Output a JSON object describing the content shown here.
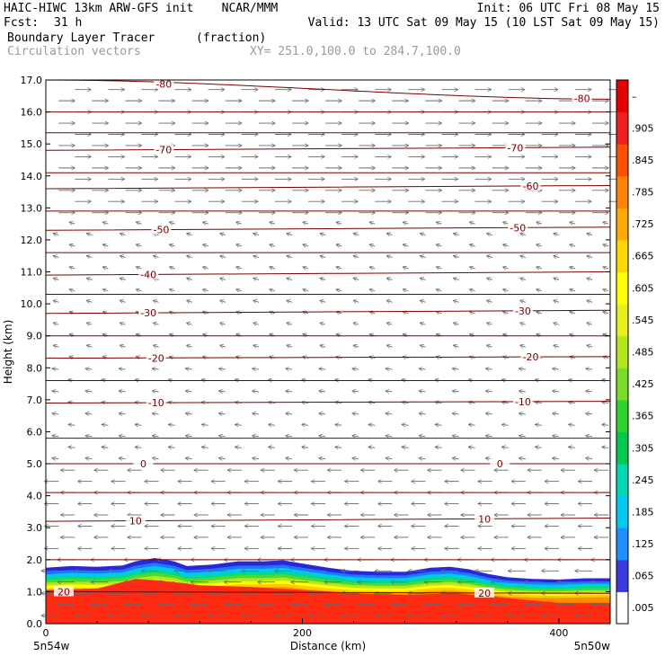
{
  "header": {
    "model_line": "HAIC-HIWC 13km ARW-GFS init    NCAR/MMM",
    "init_line": "Init: 06 UTC Fri 08 May 15",
    "fcst_label": "Fcst:",
    "fcst_value": "31 h",
    "valid_line": "Valid: 13 UTC Sat 09 May 15 (10 LST Sat 09 May 15)",
    "field1_name": "Boundary Layer Tracer",
    "field1_units": "(fraction)",
    "field2_name": "Circulation vectors",
    "xy_line": "XY= 251.0,100.0 to 284.7,100.0"
  },
  "axes": {
    "ylabel": "Height (km)",
    "xlabel": "Distance (km)",
    "left_end_label": "5n54w",
    "right_end_label": "5n50w"
  },
  "chart_data": {
    "type": "heatmap",
    "title": "Boundary Layer Tracer",
    "units": "(fraction)",
    "xlabel": "Distance (km)",
    "ylabel": "Height (km)",
    "xlim": [
      0,
      440
    ],
    "ylim": [
      0,
      17
    ],
    "x_ticks": [
      0,
      200,
      400
    ],
    "y_ticks": [
      "0.0",
      "1.0",
      "2.0",
      "3.0",
      "4.0",
      "5.0",
      "6.0",
      "7.0",
      "8.0",
      "9.0",
      "10.0",
      "11.0",
      "12.0",
      "13.0",
      "14.0",
      "15.0",
      "16.0",
      "17.0"
    ],
    "colorbar": {
      "labels": [
        ".005",
        ".065",
        ".125",
        ".185",
        ".245",
        ".305",
        ".365",
        ".425",
        ".485",
        ".545",
        ".605",
        ".665",
        ".725",
        ".785",
        ".845",
        ".905",
        "–"
      ],
      "colors": [
        "#ffffff",
        "#3a3ae0",
        "#1e90ff",
        "#00c8f0",
        "#00d8b4",
        "#00c850",
        "#30d230",
        "#78dc28",
        "#b4e61e",
        "#e6f01e",
        "#ffff00",
        "#ffd700",
        "#ffaa00",
        "#ff8200",
        "#ff5000",
        "#f01e1e",
        "#e60000"
      ]
    },
    "tracer_top_km": [
      [
        0,
        1.75
      ],
      [
        20,
        1.8
      ],
      [
        40,
        1.78
      ],
      [
        60,
        1.82
      ],
      [
        70,
        1.95
      ],
      [
        85,
        2.05
      ],
      [
        100,
        1.95
      ],
      [
        110,
        1.8
      ],
      [
        130,
        1.85
      ],
      [
        150,
        1.95
      ],
      [
        170,
        1.95
      ],
      [
        185,
        1.98
      ],
      [
        200,
        1.88
      ],
      [
        220,
        1.75
      ],
      [
        240,
        1.65
      ],
      [
        260,
        1.62
      ],
      [
        280,
        1.62
      ],
      [
        300,
        1.75
      ],
      [
        315,
        1.78
      ],
      [
        330,
        1.7
      ],
      [
        345,
        1.55
      ],
      [
        360,
        1.45
      ],
      [
        380,
        1.4
      ],
      [
        400,
        1.38
      ],
      [
        420,
        1.42
      ],
      [
        440,
        1.42
      ]
    ],
    "tracer_red_top_km": [
      [
        0,
        1.05
      ],
      [
        40,
        1.1
      ],
      [
        70,
        1.4
      ],
      [
        90,
        1.35
      ],
      [
        120,
        1.2
      ],
      [
        160,
        1.15
      ],
      [
        200,
        1.05
      ],
      [
        240,
        0.95
      ],
      [
        280,
        0.9
      ],
      [
        320,
        0.95
      ],
      [
        360,
        0.8
      ],
      [
        400,
        0.65
      ],
      [
        440,
        0.65
      ]
    ],
    "temperature_contours": [
      {
        "value": "20",
        "heights_km": [
          1.0,
          0.95
        ],
        "labels": [
          {
            "text": "20",
            "x": 14
          },
          {
            "text": "20",
            "x": 342
          }
        ]
      },
      {
        "value": "10",
        "heights_km": [
          3.2,
          3.3
        ],
        "labels": [
          {
            "text": "10",
            "x": 70
          },
          {
            "text": "10",
            "x": 342
          }
        ]
      },
      {
        "value": "0",
        "heights_km": [
          5.0,
          5.0
        ],
        "labels": [
          {
            "text": "0",
            "x": 76
          },
          {
            "text": "0",
            "x": 354
          }
        ]
      },
      {
        "value": "-10",
        "heights_km": [
          6.9,
          6.95
        ],
        "labels": [
          {
            "text": "-10",
            "x": 86
          },
          {
            "text": "-10",
            "x": 372
          }
        ]
      },
      {
        "value": "-20",
        "heights_km": [
          8.3,
          8.35
        ],
        "labels": [
          {
            "text": "-20",
            "x": 86
          },
          {
            "text": "-20",
            "x": 378
          }
        ]
      },
      {
        "value": "-30",
        "heights_km": [
          9.7,
          9.8
        ],
        "labels": [
          {
            "text": "-30",
            "x": 80
          },
          {
            "text": "-30",
            "x": 372
          }
        ]
      },
      {
        "value": "-40",
        "heights_km": [
          10.9,
          11.0
        ],
        "labels": [
          {
            "text": "-40",
            "x": 80
          }
        ]
      },
      {
        "value": "-50",
        "heights_km": [
          12.3,
          12.4
        ],
        "labels": [
          {
            "text": "-50",
            "x": 90
          },
          {
            "text": "-50",
            "x": 368
          }
        ]
      },
      {
        "value": "-60",
        "heights_km": [
          13.6,
          13.7
        ],
        "labels": [
          {
            "text": "-60",
            "x": 378
          }
        ]
      },
      {
        "value": "-70",
        "heights_km": [
          14.8,
          14.9
        ],
        "labels": [
          {
            "text": "-70",
            "x": 92
          },
          {
            "text": "-70",
            "x": 366
          }
        ]
      },
      {
        "value": "-80",
        "heights_km": [
          17.0,
          16.4
        ],
        "labels": [
          {
            "text": "-80",
            "x": 92
          },
          {
            "text": "-80",
            "x": 418
          }
        ]
      }
    ],
    "extra_isotherm_heights_km": [
      2.0,
      4.1,
      5.8,
      7.6,
      9.0,
      10.3,
      11.6,
      12.9,
      14.1,
      15.35,
      16.0
    ],
    "vectors": [
      {
        "z_from": 0.0,
        "z_to": 2.2,
        "u": -1.6,
        "w": 0.0
      },
      {
        "z_from": 2.2,
        "z_to": 5.0,
        "u": -1.3,
        "w": 0.0
      },
      {
        "z_from": 5.0,
        "z_to": 8.0,
        "u": -0.6,
        "w": 0.05
      },
      {
        "z_from": 8.0,
        "z_to": 12.5,
        "u": -0.5,
        "w": 0.1
      },
      {
        "z_from": 12.5,
        "z_to": 17.0,
        "u": 1.5,
        "w": 0.0
      }
    ]
  }
}
